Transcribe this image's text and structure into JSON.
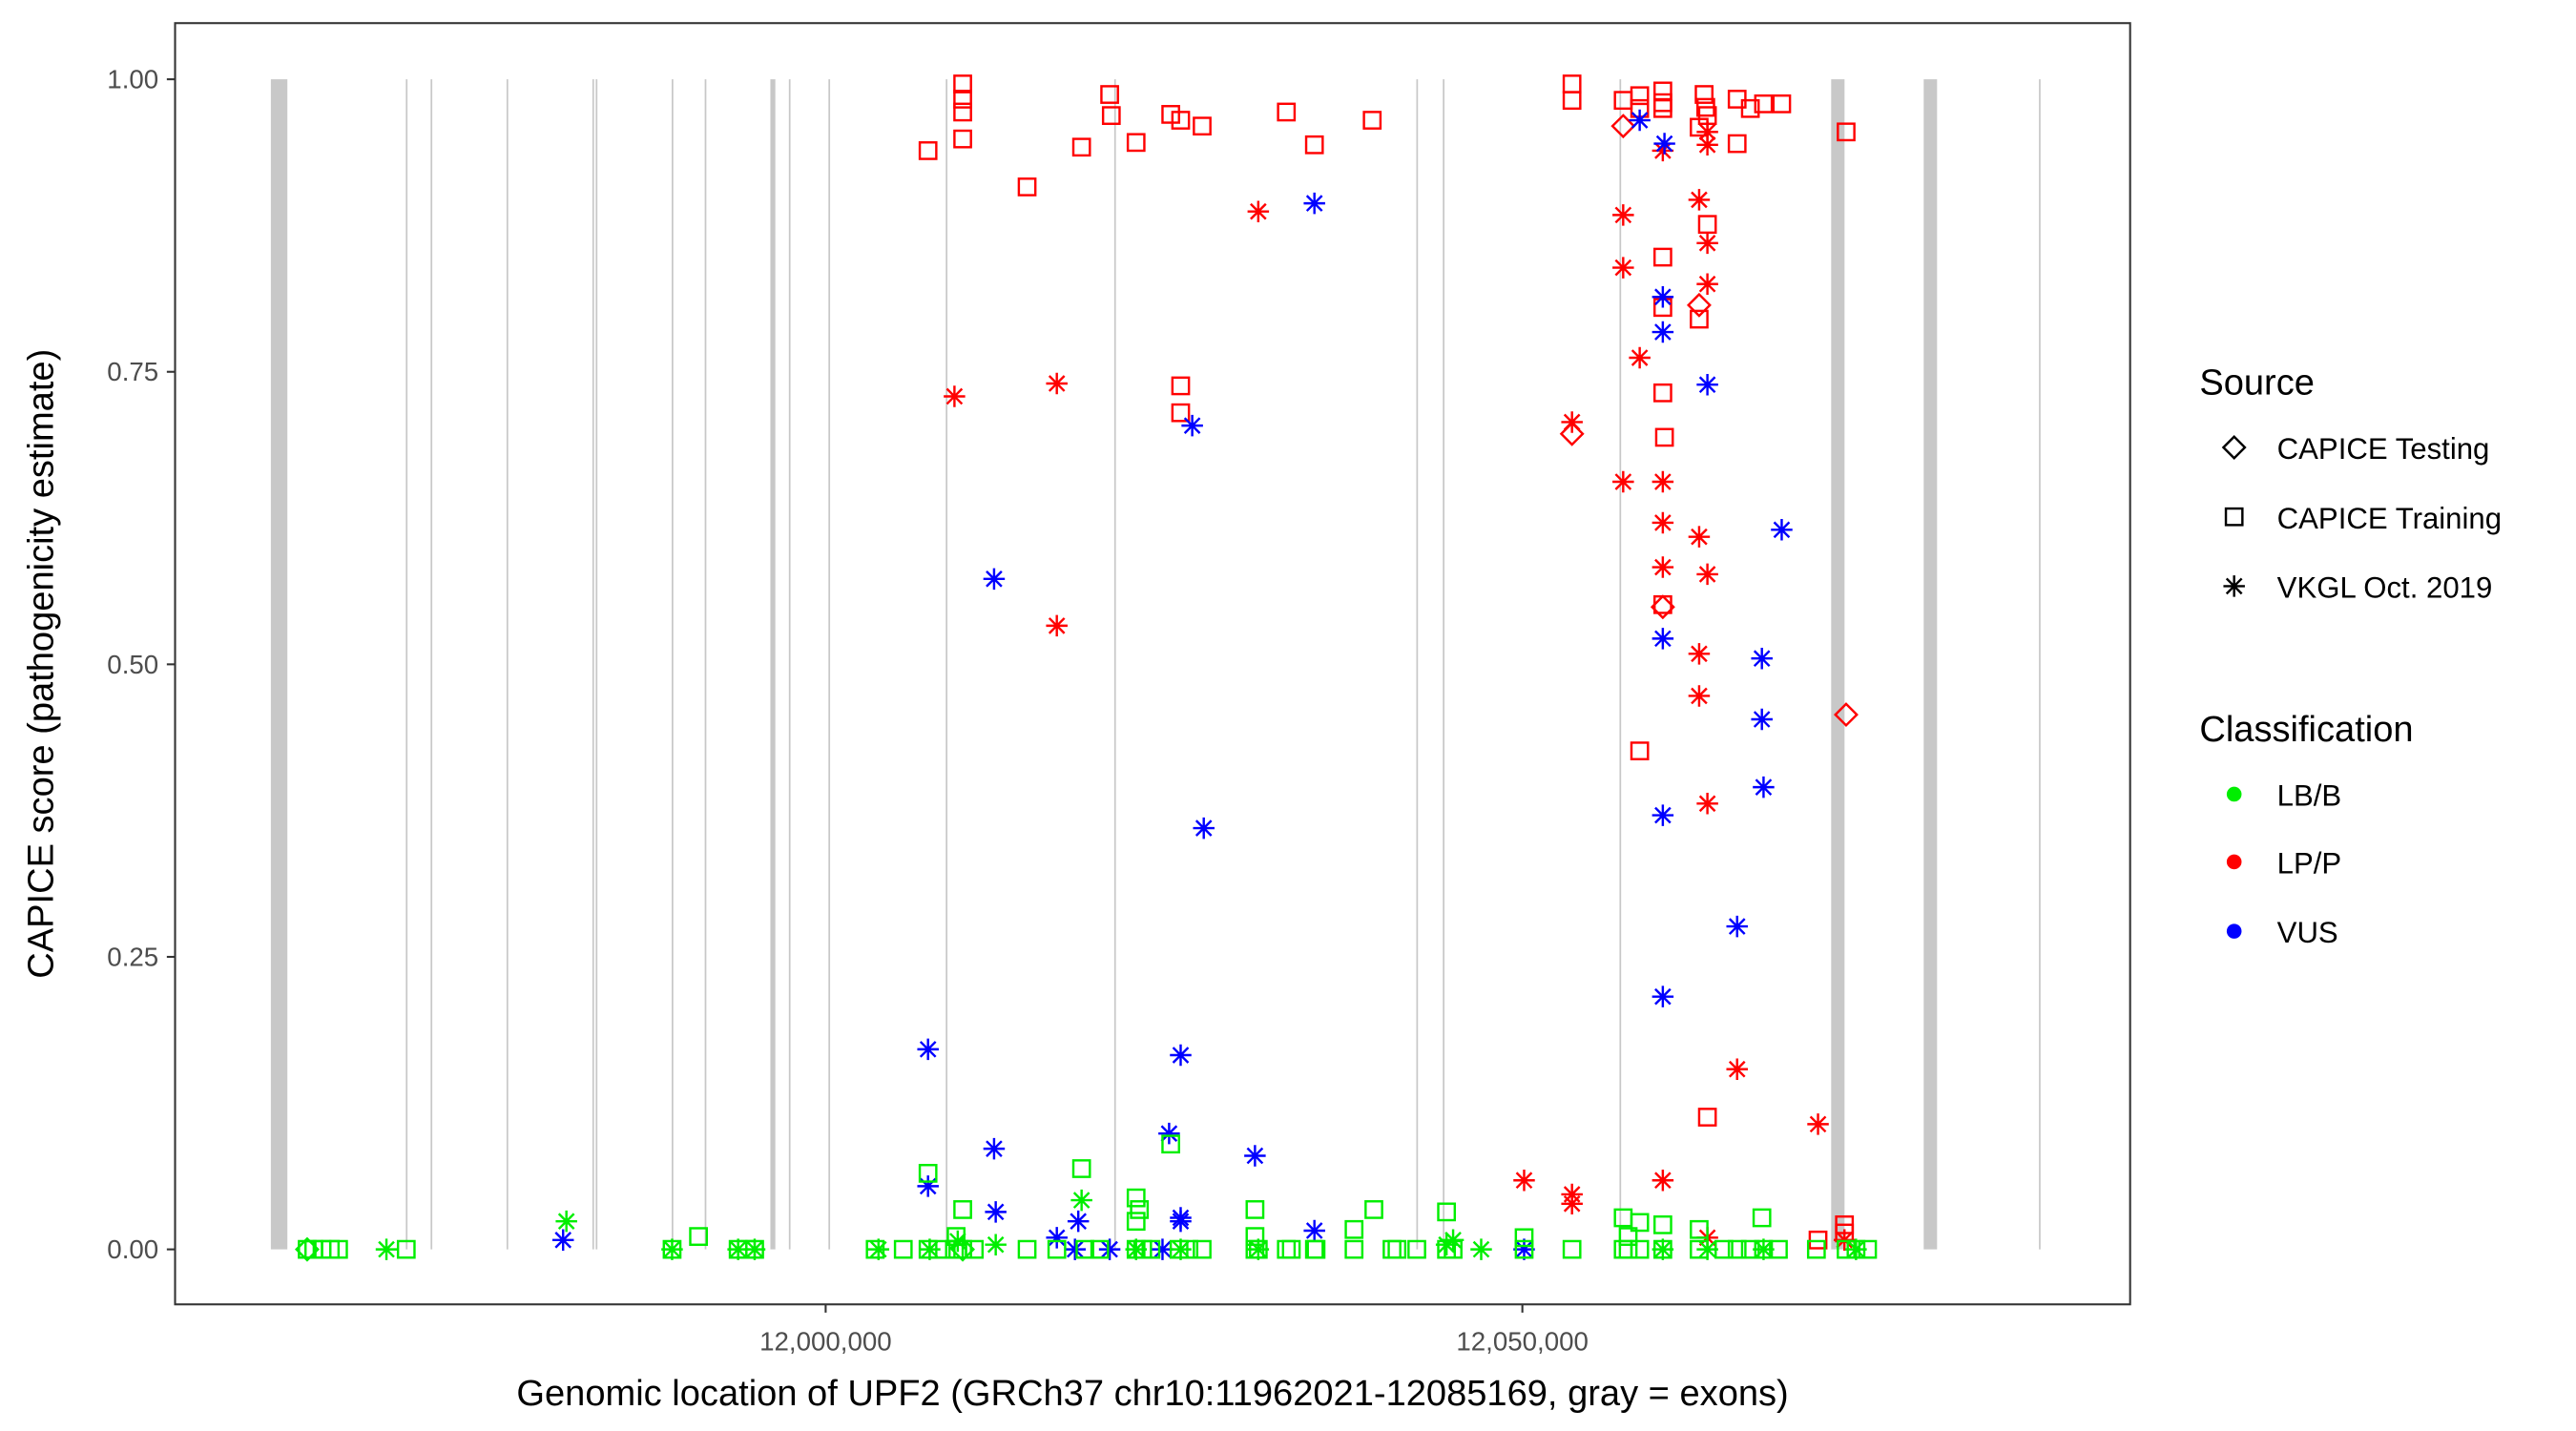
{
  "chart_data": {
    "type": "scatter",
    "title": "",
    "xlabel": "Genomic location of UPF2 (GRCh37 chr10:11962021-12085169, gray = exons)",
    "ylabel": "CAPICE score (pathogenicity estimate)",
    "xlim": [
      11953311,
      12093615
    ],
    "ylim": [
      -0.047,
      1.048
    ],
    "x_ticks": [
      {
        "value": 12000000,
        "label": "12,000,000"
      },
      {
        "value": 12050000,
        "label": "12,050,000"
      }
    ],
    "y_ticks": [
      {
        "value": 0,
        "label": "0.00"
      },
      {
        "value": 0.25,
        "label": "0.25"
      },
      {
        "value": 0.5,
        "label": "0.50"
      },
      {
        "value": 0.75,
        "label": "0.75"
      },
      {
        "value": 1,
        "label": "1.00"
      }
    ],
    "grid": false,
    "exon_color": "#c8c8c8",
    "exons": [
      [
        11960184,
        11961370
      ],
      [
        11969870,
        11969930
      ],
      [
        11971650,
        11971710
      ],
      [
        11977100,
        11977160
      ],
      [
        11983260,
        11983320
      ],
      [
        11983500,
        11983560
      ],
      [
        11988950,
        11989010
      ],
      [
        11991320,
        11991380
      ],
      [
        11996030,
        11996390
      ],
      [
        11997360,
        11997420
      ],
      [
        12000200,
        12000270
      ],
      [
        12008620,
        12008680
      ],
      [
        12020710,
        12020770
      ],
      [
        12042390,
        12042450
      ],
      [
        12044290,
        12044350
      ],
      [
        12056970,
        12057030
      ],
      [
        12072160,
        12073120
      ],
      [
        12078800,
        12079760
      ],
      [
        12087070,
        12087130
      ]
    ],
    "legend": {
      "placement": "right",
      "source_title": "Source",
      "sources": [
        {
          "code": "D",
          "label": "CAPICE Testing",
          "shape": "diamond"
        },
        {
          "code": "S",
          "label": "CAPICE Training",
          "shape": "square"
        },
        {
          "code": "A",
          "label": "VKGL Oct. 2019",
          "shape": "asterisk"
        }
      ],
      "class_title": "Classification",
      "classes": [
        {
          "code": "LB",
          "label": "LB/B",
          "color": "#00ee00"
        },
        {
          "code": "LP",
          "label": "LP/P",
          "color": "#ff0000"
        },
        {
          "code": "VUS",
          "label": "VUS",
          "color": "#0000ff"
        }
      ]
    },
    "points_columns": [
      "x",
      "y",
      "source",
      "class"
    ],
    "points": [
      [
        12007347,
        0.939,
        "S",
        "LP"
      ],
      [
        12009835,
        0.996,
        "S",
        "LP"
      ],
      [
        12009835,
        0.983,
        "S",
        "LP"
      ],
      [
        12009835,
        0.972,
        "S",
        "LP"
      ],
      [
        12009835,
        0.949,
        "S",
        "LP"
      ],
      [
        12014457,
        0.908,
        "S",
        "LP"
      ],
      [
        12018367,
        0.942,
        "S",
        "LP"
      ],
      [
        12020382,
        0.987,
        "S",
        "LP"
      ],
      [
        12020500,
        0.969,
        "S",
        "LP"
      ],
      [
        12022278,
        0.946,
        "S",
        "LP"
      ],
      [
        12024766,
        0.97,
        "S",
        "LP"
      ],
      [
        12025477,
        0.965,
        "S",
        "LP"
      ],
      [
        12027018,
        0.96,
        "S",
        "LP"
      ],
      [
        12033061,
        0.972,
        "S",
        "LP"
      ],
      [
        12035076,
        0.944,
        "S",
        "LP"
      ],
      [
        12039223,
        0.965,
        "S",
        "LP"
      ],
      [
        12053562,
        0.996,
        "S",
        "LP"
      ],
      [
        12053562,
        0.982,
        "S",
        "LP"
      ],
      [
        12057235,
        0.982,
        "S",
        "LP"
      ],
      [
        12058420,
        0.986,
        "S",
        "LP"
      ],
      [
        12058420,
        0.975,
        "S",
        "LP"
      ],
      [
        12060079,
        0.99,
        "S",
        "LP"
      ],
      [
        12060079,
        0.98,
        "S",
        "LP"
      ],
      [
        12060079,
        0.975,
        "S",
        "LP"
      ],
      [
        12062686,
        0.959,
        "S",
        "LP"
      ],
      [
        12063042,
        0.987,
        "S",
        "LP"
      ],
      [
        12063160,
        0.976,
        "S",
        "LP"
      ],
      [
        12063279,
        0.969,
        "S",
        "LP"
      ],
      [
        12065412,
        0.983,
        "S",
        "LP"
      ],
      [
        12066360,
        0.975,
        "S",
        "LP"
      ],
      [
        12067308,
        0.979,
        "S",
        "LP"
      ],
      [
        12068611,
        0.979,
        "S",
        "LP"
      ],
      [
        12065412,
        0.945,
        "S",
        "LP"
      ],
      [
        12073233,
        0.955,
        "S",
        "LP"
      ],
      [
        12060079,
        0.848,
        "S",
        "LP"
      ],
      [
        12063279,
        0.876,
        "S",
        "LP"
      ],
      [
        12062686,
        0.795,
        "S",
        "LP"
      ],
      [
        12060079,
        0.732,
        "S",
        "LP"
      ],
      [
        12060198,
        0.694,
        "S",
        "LP"
      ],
      [
        12060079,
        0.551,
        "S",
        "LP"
      ],
      [
        12058420,
        0.426,
        "S",
        "LP"
      ],
      [
        12063279,
        0.113,
        "S",
        "LP"
      ],
      [
        12073114,
        0.021,
        "S",
        "LP"
      ],
      [
        12073114,
        0.014,
        "S",
        "LP"
      ],
      [
        12071218,
        0.008,
        "S",
        "LP"
      ],
      [
        12025477,
        0.738,
        "S",
        "LP"
      ],
      [
        12025477,
        0.715,
        "S",
        "LP"
      ],
      [
        12060079,
        0.805,
        "S",
        "LP"
      ],
      [
        12057235,
        0.96,
        "D",
        "LP"
      ],
      [
        12053562,
        0.697,
        "D",
        "LP"
      ],
      [
        12062686,
        0.807,
        "D",
        "LP"
      ],
      [
        12060079,
        0.549,
        "D",
        "LP"
      ],
      [
        12073233,
        0.457,
        "D",
        "LP"
      ],
      [
        12009243,
        0.729,
        "A",
        "LP"
      ],
      [
        12016590,
        0.74,
        "A",
        "LP"
      ],
      [
        12016590,
        0.533,
        "A",
        "LP"
      ],
      [
        12031047,
        0.887,
        "A",
        "LP"
      ],
      [
        12057235,
        0.884,
        "A",
        "LP"
      ],
      [
        12057235,
        0.839,
        "A",
        "LP"
      ],
      [
        12058420,
        0.762,
        "A",
        "LP"
      ],
      [
        12053562,
        0.707,
        "A",
        "LP"
      ],
      [
        12057235,
        0.656,
        "A",
        "LP"
      ],
      [
        12060079,
        0.656,
        "A",
        "LP"
      ],
      [
        12060079,
        0.621,
        "A",
        "LP"
      ],
      [
        12062686,
        0.609,
        "A",
        "LP"
      ],
      [
        12060079,
        0.583,
        "A",
        "LP"
      ],
      [
        12063279,
        0.577,
        "A",
        "LP"
      ],
      [
        12062686,
        0.509,
        "A",
        "LP"
      ],
      [
        12062686,
        0.473,
        "A",
        "LP"
      ],
      [
        12063279,
        0.381,
        "A",
        "LP"
      ],
      [
        12065412,
        0.154,
        "A",
        "LP"
      ],
      [
        12071218,
        0.107,
        "A",
        "LP"
      ],
      [
        12050125,
        0.059,
        "A",
        "LP"
      ],
      [
        12053562,
        0.047,
        "A",
        "LP"
      ],
      [
        12053562,
        0.039,
        "A",
        "LP"
      ],
      [
        12060079,
        0.059,
        "A",
        "LP"
      ],
      [
        12063279,
        0.01,
        "A",
        "LP"
      ],
      [
        12073114,
        0.008,
        "A",
        "LP"
      ],
      [
        12062686,
        0.897,
        "A",
        "LP"
      ],
      [
        12063279,
        0.86,
        "A",
        "LP"
      ],
      [
        12063279,
        0.825,
        "A",
        "LP"
      ],
      [
        12060079,
        0.939,
        "A",
        "LP"
      ],
      [
        12063279,
        0.944,
        "A",
        "LP"
      ],
      [
        12063279,
        0.955,
        "A",
        "LP"
      ],
      [
        11981158,
        0.008,
        "A",
        "VUS"
      ],
      [
        12007347,
        0.171,
        "A",
        "VUS"
      ],
      [
        12007347,
        0.054,
        "A",
        "VUS"
      ],
      [
        12012087,
        0.573,
        "A",
        "VUS"
      ],
      [
        12012087,
        0.086,
        "A",
        "VUS"
      ],
      [
        12012205,
        0.032,
        "A",
        "VUS"
      ],
      [
        12016590,
        0.01,
        "A",
        "VUS"
      ],
      [
        12018130,
        0.024,
        "A",
        "VUS"
      ],
      [
        12017893,
        0.0,
        "A",
        "VUS"
      ],
      [
        12020382,
        0.0,
        "A",
        "VUS"
      ],
      [
        12025477,
        0.166,
        "A",
        "VUS"
      ],
      [
        12024648,
        0.099,
        "A",
        "VUS"
      ],
      [
        12025477,
        0.024,
        "A",
        "VUS"
      ],
      [
        12025477,
        0.027,
        "A",
        "VUS"
      ],
      [
        12026307,
        0.704,
        "A",
        "VUS"
      ],
      [
        12027136,
        0.36,
        "A",
        "VUS"
      ],
      [
        12030810,
        0.08,
        "A",
        "VUS"
      ],
      [
        12035076,
        0.894,
        "A",
        "VUS"
      ],
      [
        12035076,
        0.016,
        "A",
        "VUS"
      ],
      [
        12024174,
        0.0,
        "A",
        "VUS"
      ],
      [
        12050125,
        0.0,
        "A",
        "VUS"
      ],
      [
        12058420,
        0.965,
        "A",
        "VUS"
      ],
      [
        12060198,
        0.945,
        "A",
        "VUS"
      ],
      [
        12060079,
        0.814,
        "A",
        "VUS"
      ],
      [
        12060079,
        0.784,
        "A",
        "VUS"
      ],
      [
        12063279,
        0.739,
        "A",
        "VUS"
      ],
      [
        12068611,
        0.615,
        "A",
        "VUS"
      ],
      [
        12060079,
        0.522,
        "A",
        "VUS"
      ],
      [
        12067189,
        0.505,
        "A",
        "VUS"
      ],
      [
        12067189,
        0.453,
        "A",
        "VUS"
      ],
      [
        12060079,
        0.371,
        "A",
        "VUS"
      ],
      [
        12067308,
        0.395,
        "A",
        "VUS"
      ],
      [
        12065412,
        0.276,
        "A",
        "VUS"
      ],
      [
        12060079,
        0.216,
        "A",
        "VUS"
      ],
      [
        11962791,
        0,
        "S",
        "LB"
      ],
      [
        11963265,
        0,
        "S",
        "LB"
      ],
      [
        11963857,
        0,
        "S",
        "LB"
      ],
      [
        11964450,
        0,
        "S",
        "LB"
      ],
      [
        11965042,
        0,
        "S",
        "LB"
      ],
      [
        11969901,
        0,
        "S",
        "LB"
      ],
      [
        11988979,
        0,
        "S",
        "LB"
      ],
      [
        11990875,
        0.011,
        "S",
        "LB"
      ],
      [
        11993719,
        0,
        "S",
        "LB"
      ],
      [
        11994312,
        0,
        "S",
        "LB"
      ],
      [
        11994904,
        0,
        "S",
        "LB"
      ],
      [
        12003555,
        0,
        "S",
        "LB"
      ],
      [
        12005569,
        0,
        "S",
        "LB"
      ],
      [
        12007347,
        0,
        "S",
        "LB"
      ],
      [
        12008058,
        0,
        "S",
        "LB"
      ],
      [
        12009243,
        0,
        "S",
        "LB"
      ],
      [
        12009480,
        0,
        "S",
        "LB"
      ],
      [
        12009835,
        0,
        "S",
        "LB"
      ],
      [
        12010665,
        0,
        "S",
        "LB"
      ],
      [
        12014457,
        0,
        "S",
        "LB"
      ],
      [
        12016590,
        0,
        "S",
        "LB"
      ],
      [
        12018604,
        0,
        "S",
        "LB"
      ],
      [
        12019671,
        0,
        "S",
        "LB"
      ],
      [
        12022278,
        0,
        "S",
        "LB"
      ],
      [
        12022752,
        0,
        "S",
        "LB"
      ],
      [
        12023344,
        0,
        "S",
        "LB"
      ],
      [
        12025359,
        0,
        "S",
        "LB"
      ],
      [
        12026070,
        0,
        "S",
        "LB"
      ],
      [
        12027018,
        0,
        "S",
        "LB"
      ],
      [
        12030810,
        0,
        "S",
        "LB"
      ],
      [
        12031047,
        0,
        "S",
        "LB"
      ],
      [
        12033061,
        0,
        "S",
        "LB"
      ],
      [
        12033417,
        0,
        "S",
        "LB"
      ],
      [
        12035076,
        0,
        "S",
        "LB"
      ],
      [
        12035194,
        0,
        "S",
        "LB"
      ],
      [
        12037920,
        0,
        "S",
        "LB"
      ],
      [
        12040645,
        0,
        "S",
        "LB"
      ],
      [
        12041001,
        0,
        "S",
        "LB"
      ],
      [
        12042423,
        0,
        "S",
        "LB"
      ],
      [
        12044556,
        0,
        "S",
        "LB"
      ],
      [
        12045030,
        0,
        "S",
        "LB"
      ],
      [
        12050125,
        0,
        "S",
        "LB"
      ],
      [
        12053562,
        0,
        "S",
        "LB"
      ],
      [
        12057235,
        0,
        "S",
        "LB"
      ],
      [
        12057591,
        0,
        "S",
        "LB"
      ],
      [
        12058420,
        0,
        "S",
        "LB"
      ],
      [
        12060079,
        0,
        "S",
        "LB"
      ],
      [
        12062686,
        0,
        "S",
        "LB"
      ],
      [
        12064464,
        0,
        "S",
        "LB"
      ],
      [
        12065412,
        0,
        "S",
        "LB"
      ],
      [
        12066360,
        0,
        "S",
        "LB"
      ],
      [
        12067308,
        0,
        "S",
        "LB"
      ],
      [
        12068374,
        0,
        "S",
        "LB"
      ],
      [
        12071100,
        0,
        "S",
        "LB"
      ],
      [
        12073233,
        0,
        "S",
        "LB"
      ],
      [
        12073944,
        0,
        "S",
        "LB"
      ],
      [
        12074773,
        0,
        "S",
        "LB"
      ],
      [
        12007347,
        0.065,
        "S",
        "LB"
      ],
      [
        12009835,
        0.034,
        "S",
        "LB"
      ],
      [
        12018367,
        0.069,
        "S",
        "LB"
      ],
      [
        12022278,
        0.044,
        "S",
        "LB"
      ],
      [
        12022278,
        0.024,
        "S",
        "LB"
      ],
      [
        12022515,
        0.034,
        "S",
        "LB"
      ],
      [
        12024766,
        0.09,
        "S",
        "LB"
      ],
      [
        12030810,
        0.034,
        "S",
        "LB"
      ],
      [
        12030810,
        0.011,
        "S",
        "LB"
      ],
      [
        12037920,
        0.017,
        "S",
        "LB"
      ],
      [
        12039342,
        0.034,
        "S",
        "LB"
      ],
      [
        12044556,
        0.032,
        "S",
        "LB"
      ],
      [
        12050125,
        0.01,
        "S",
        "LB"
      ],
      [
        12057235,
        0.027,
        "S",
        "LB"
      ],
      [
        12058420,
        0.023,
        "S",
        "LB"
      ],
      [
        12060079,
        0.021,
        "S",
        "LB"
      ],
      [
        12062686,
        0.017,
        "S",
        "LB"
      ],
      [
        12067189,
        0.027,
        "S",
        "LB"
      ],
      [
        12009361,
        0.011,
        "S",
        "LB"
      ],
      [
        12057591,
        0.011,
        "S",
        "LB"
      ],
      [
        11968479,
        0,
        "A",
        "LB"
      ],
      [
        11981395,
        0.024,
        "A",
        "LB"
      ],
      [
        11988979,
        0,
        "A",
        "LB"
      ],
      [
        11993719,
        0,
        "A",
        "LB"
      ],
      [
        11994904,
        0,
        "A",
        "LB"
      ],
      [
        12003792,
        0,
        "A",
        "LB"
      ],
      [
        12007465,
        0,
        "A",
        "LB"
      ],
      [
        12009480,
        0.007,
        "A",
        "LB"
      ],
      [
        12012205,
        0.004,
        "A",
        "LB"
      ],
      [
        12018367,
        0.042,
        "A",
        "LB"
      ],
      [
        12022278,
        0,
        "A",
        "LB"
      ],
      [
        12025477,
        0,
        "A",
        "LB"
      ],
      [
        12031047,
        0,
        "A",
        "LB"
      ],
      [
        12044556,
        0.004,
        "A",
        "LB"
      ],
      [
        12045030,
        0.008,
        "A",
        "LB"
      ],
      [
        12047044,
        0,
        "A",
        "LB"
      ],
      [
        12060079,
        0,
        "A",
        "LB"
      ],
      [
        12063279,
        0,
        "A",
        "LB"
      ],
      [
        12067308,
        0,
        "A",
        "LB"
      ],
      [
        12073944,
        0,
        "A",
        "LB"
      ],
      [
        11962791,
        0,
        "D",
        "LB"
      ],
      [
        12009835,
        0,
        "D",
        "LB"
      ]
    ]
  }
}
